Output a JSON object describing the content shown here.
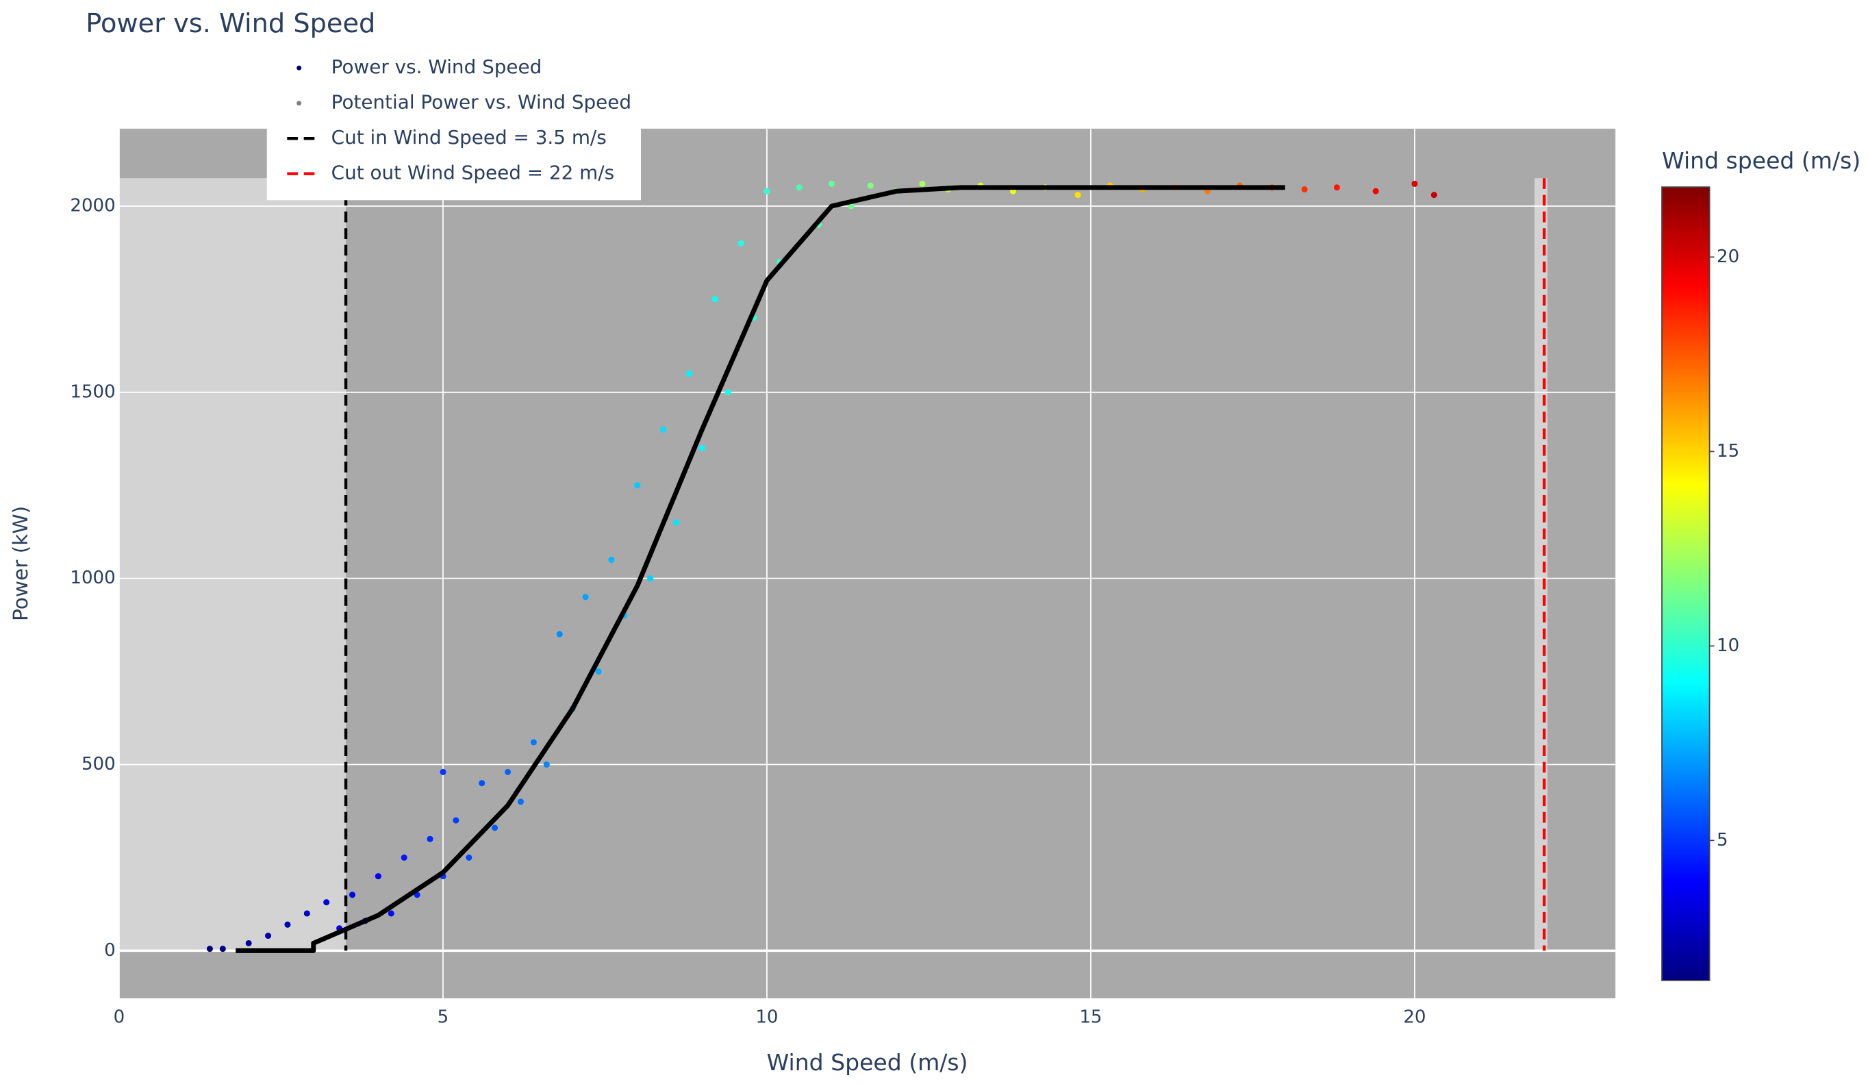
{
  "chart_data": {
    "type": "scatter",
    "title": "Power vs. Wind Speed",
    "x_label": "Wind Speed (m/s)",
    "y_label": "Power (kW)",
    "xlim": [
      0,
      23.1
    ],
    "ylim": [
      -128,
      2208
    ],
    "xticks": [
      0,
      5,
      10,
      15,
      20
    ],
    "yticks": [
      0,
      500,
      1000,
      1500,
      2000
    ],
    "grid": true,
    "plot_background": "#a9a9a9",
    "shaded_regions": [
      {
        "x0": 0,
        "x1": 3.5,
        "y0": 0,
        "y1": 2075,
        "color": "#d3d3d3"
      },
      {
        "x0": 21.85,
        "x1": 22.05,
        "y0": 0,
        "y1": 2075,
        "color": "#d3d3d3"
      }
    ],
    "series": [
      {
        "name": "Power vs. Wind Speed",
        "type": "scatter",
        "color": "#00007f",
        "x": [
          1.4,
          1.6,
          2.0,
          2.3,
          2.6,
          2.9,
          3.2,
          3.4,
          3.6,
          3.8,
          4.0,
          4.2,
          4.4,
          4.6,
          4.8,
          5.0,
          5.0,
          5.2,
          5.4,
          5.6,
          5.8,
          6.0,
          6.2,
          6.4,
          6.6,
          6.8,
          7.0,
          7.2,
          7.4,
          7.6,
          7.8,
          8.0,
          8.2,
          8.4,
          8.6,
          8.8,
          9.0,
          9.2,
          9.4,
          9.6,
          9.8,
          10.0,
          10.2,
          10.5,
          10.8,
          11.0,
          11.3,
          11.6,
          12.0,
          12.4,
          12.8,
          13.3,
          13.8,
          14.3,
          14.8,
          15.3,
          15.8,
          16.3,
          16.8,
          17.3,
          17.8,
          18.3,
          18.8,
          19.4,
          20.0,
          20.3
        ],
        "y": [
          5,
          5,
          20,
          40,
          70,
          100,
          130,
          60,
          150,
          80,
          200,
          100,
          250,
          150,
          300,
          480,
          200,
          350,
          250,
          450,
          330,
          480,
          400,
          560,
          500,
          850,
          650,
          950,
          750,
          1050,
          900,
          1250,
          1000,
          1400,
          1150,
          1550,
          1350,
          1750,
          1500,
          1900,
          1700,
          2040,
          1850,
          2050,
          1950,
          2060,
          2000,
          2055,
          2040,
          2060,
          2045,
          2055,
          2040,
          2050,
          2030,
          2055,
          2045,
          2050,
          2040,
          2055,
          2050,
          2045,
          2050,
          2040,
          2060,
          2030
        ]
      },
      {
        "name": "Potential Power vs. Wind Speed",
        "type": "line",
        "color": "#808080",
        "line_color": "#000000",
        "x": [
          1.8,
          3.0,
          3.0,
          4,
          5,
          6,
          7,
          8,
          9,
          10,
          11,
          12,
          13,
          14,
          15,
          16,
          17,
          18
        ],
        "y": [
          0,
          0,
          20,
          95,
          210,
          390,
          650,
          980,
          1400,
          1800,
          2000,
          2040,
          2050,
          2050,
          2050,
          2050,
          2050,
          2050
        ]
      }
    ],
    "vlines": [
      {
        "name": "Cut in Wind Speed = 3.5 m/s",
        "x": 3.5,
        "y0": 0,
        "y1": 2075,
        "color": "#000000"
      },
      {
        "name": "Cut out Wind Speed = 22 m/s",
        "x": 22,
        "y0": 0,
        "y1": 2075,
        "color": "#ff0000"
      }
    ],
    "colorbar": {
      "title": "Wind speed (m/s)",
      "lim": [
        1.4,
        21.8
      ],
      "ticks": [
        5,
        10,
        15,
        20
      ],
      "colorscale": [
        [
          0,
          "#00007f"
        ],
        [
          0.125,
          "#0000ff"
        ],
        [
          0.375,
          "#00ffff"
        ],
        [
          0.625,
          "#ffff00"
        ],
        [
          0.875,
          "#ff0000"
        ],
        [
          1,
          "#7f0000"
        ]
      ]
    }
  }
}
